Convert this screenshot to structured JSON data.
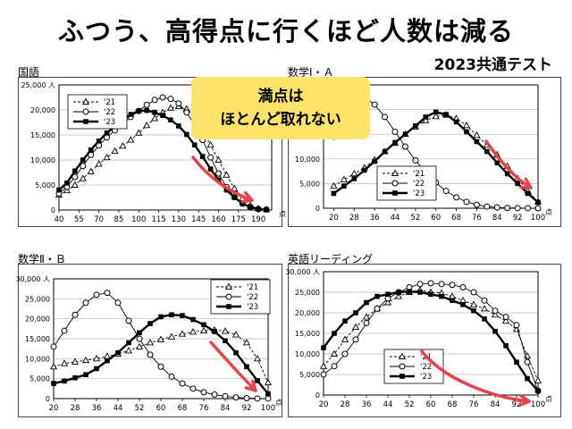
{
  "headline": "ふつう、高得点に行くほど人数は減る",
  "subline": "2023共通テスト",
  "callout": {
    "line1": "満点は",
    "line2": "ほとんど取れない"
  },
  "colors": {
    "accent_arrow": "#e8424a",
    "callout_bg": "#fde36a"
  },
  "chart_data": [
    {
      "type": "line",
      "title": "国語",
      "ylim": [
        0,
        25000
      ],
      "yticks": [
        "0",
        "5,000",
        "10,000",
        "15,000",
        "20,000",
        "25,000 人"
      ],
      "xlim": [
        40,
        200
      ],
      "x_tick_values": [
        40,
        55,
        70,
        85,
        100,
        115,
        130,
        145,
        160,
        175,
        190
      ],
      "x_unit": "点",
      "legend": [
        "'21",
        "'22",
        "'23"
      ],
      "series": [
        {
          "name": "'21",
          "marker": "triangle",
          "x": [
            40,
            46,
            52,
            58,
            64,
            70,
            76,
            82,
            88,
            94,
            100,
            106,
            112,
            118,
            124,
            130,
            136,
            142,
            148,
            154,
            160,
            166,
            172,
            178,
            184,
            190,
            196
          ],
          "values": [
            3000,
            3900,
            5000,
            6300,
            7700,
            9200,
            10500,
            11800,
            12800,
            14000,
            15400,
            16900,
            18300,
            19500,
            20400,
            20700,
            20200,
            18700,
            16000,
            13000,
            10000,
            7000,
            4300,
            2300,
            900,
            300,
            100
          ]
        },
        {
          "name": "'22",
          "marker": "circle",
          "x": [
            40,
            46,
            52,
            58,
            64,
            70,
            76,
            82,
            88,
            94,
            100,
            106,
            112,
            118,
            124,
            130,
            136,
            142,
            148,
            154,
            160,
            166,
            172,
            178,
            184,
            190,
            196
          ],
          "values": [
            3300,
            4600,
            6600,
            8800,
            11000,
            12900,
            14500,
            15900,
            17200,
            18600,
            19800,
            21000,
            22000,
            22500,
            22200,
            21300,
            19500,
            17000,
            14000,
            10500,
            7300,
            4600,
            2600,
            1300,
            500,
            200,
            100
          ]
        },
        {
          "name": "'23",
          "marker": "square",
          "x": [
            40,
            46,
            52,
            58,
            64,
            70,
            76,
            82,
            88,
            94,
            100,
            106,
            112,
            118,
            124,
            130,
            136,
            142,
            148,
            154,
            160,
            166,
            172,
            178,
            184,
            190,
            196
          ],
          "values": [
            4000,
            5400,
            7800,
            10000,
            12000,
            13800,
            15400,
            16700,
            18000,
            19100,
            19800,
            19900,
            19500,
            18900,
            18000,
            16800,
            15100,
            13000,
            10700,
            8200,
            6000,
            4000,
            2500,
            1300,
            600,
            200,
            50
          ]
        }
      ]
    },
    {
      "type": "line",
      "title": "数学Ⅰ・Ａ",
      "ylim": [
        0,
        25000
      ],
      "yticks": [
        "0",
        "5,000",
        "10,000",
        "15,000",
        "20,000",
        "25,000 人"
      ],
      "xlim": [
        16,
        100
      ],
      "x_tick_values": [
        20,
        28,
        36,
        44,
        52,
        60,
        68,
        76,
        84,
        92,
        100
      ],
      "x_unit": "点",
      "legend": [
        "'21",
        "'22",
        "'23"
      ],
      "series": [
        {
          "name": "'21",
          "marker": "triangle",
          "x": [
            20,
            24,
            28,
            32,
            36,
            40,
            44,
            48,
            52,
            56,
            60,
            64,
            68,
            72,
            76,
            80,
            84,
            88,
            92,
            96,
            100
          ],
          "values": [
            4500,
            5800,
            7000,
            8200,
            9800,
            11500,
            13200,
            15000,
            16500,
            17800,
            18600,
            18900,
            18200,
            16800,
            14800,
            12800,
            10800,
            8500,
            6000,
            3500,
            1300
          ]
        },
        {
          "name": "'22",
          "marker": "circle",
          "x": [
            20,
            24,
            28,
            32,
            36,
            40,
            44,
            48,
            52,
            56,
            60,
            64,
            68,
            72,
            76,
            80,
            84,
            88,
            92,
            96,
            100
          ],
          "values": [
            14500,
            19800,
            23000,
            22500,
            21000,
            18500,
            15500,
            12500,
            9700,
            7300,
            5200,
            3500,
            2200,
            1300,
            700,
            350,
            150,
            70,
            30,
            10,
            5
          ]
        },
        {
          "name": "'23",
          "marker": "square",
          "x": [
            20,
            24,
            28,
            32,
            36,
            40,
            44,
            48,
            52,
            56,
            60,
            64,
            68,
            72,
            76,
            80,
            84,
            88,
            92,
            96,
            100
          ],
          "values": [
            3000,
            4500,
            6000,
            7700,
            9500,
            11500,
            13300,
            15000,
            16700,
            18500,
            19500,
            19000,
            17500,
            15500,
            13500,
            11500,
            9200,
            7000,
            5000,
            3000,
            1200
          ]
        }
      ]
    },
    {
      "type": "line",
      "title": "数学Ⅱ・Ｂ",
      "ylim": [
        0,
        30000
      ],
      "yticks": [
        "0",
        "5,000",
        "10,000",
        "15,000",
        "20,000",
        "25,000",
        "30,000 人"
      ],
      "xlim": [
        20,
        100
      ],
      "x_tick_values": [
        20,
        28,
        36,
        44,
        52,
        60,
        68,
        76,
        84,
        92,
        100
      ],
      "x_unit": "点",
      "legend": [
        "'21",
        "'22",
        "'23"
      ],
      "series": [
        {
          "name": "'21",
          "marker": "triangle",
          "x": [
            20,
            24,
            28,
            32,
            36,
            40,
            44,
            48,
            52,
            56,
            60,
            64,
            68,
            72,
            76,
            80,
            84,
            88,
            92,
            96,
            100
          ],
          "values": [
            8000,
            8800,
            9200,
            9600,
            10000,
            10600,
            11200,
            12000,
            13000,
            14000,
            14800,
            15500,
            16200,
            16700,
            17000,
            17200,
            16900,
            16000,
            14000,
            10000,
            4000
          ]
        },
        {
          "name": "'22",
          "marker": "circle",
          "x": [
            20,
            24,
            28,
            32,
            36,
            40,
            44,
            48,
            52,
            56,
            60,
            64,
            68,
            72,
            76,
            80,
            84,
            88,
            92,
            96,
            100
          ],
          "values": [
            13000,
            17000,
            21000,
            24000,
            26000,
            26500,
            24000,
            19500,
            15000,
            11000,
            8000,
            5500,
            3800,
            2500,
            1600,
            1000,
            600,
            300,
            120,
            40,
            10
          ]
        },
        {
          "name": "'23",
          "marker": "square",
          "x": [
            20,
            24,
            28,
            32,
            36,
            40,
            44,
            48,
            52,
            56,
            60,
            64,
            68,
            72,
            76,
            80,
            84,
            88,
            92,
            96,
            100
          ],
          "values": [
            3800,
            4400,
            5200,
            6000,
            7500,
            9500,
            11500,
            14000,
            16500,
            18800,
            20500,
            21000,
            20800,
            19800,
            18500,
            16800,
            14500,
            11500,
            8000,
            4500,
            1200
          ]
        }
      ]
    },
    {
      "type": "line",
      "title": "英語リーディング",
      "ylim": [
        0,
        30000
      ],
      "yticks": [
        "0",
        "5,000",
        "10,000",
        "15,000",
        "20,000",
        "25,000",
        "30,000 人"
      ],
      "xlim": [
        20,
        100
      ],
      "x_tick_values": [
        20,
        28,
        36,
        44,
        52,
        60,
        68,
        76,
        84,
        92,
        100
      ],
      "x_unit": "点",
      "legend": [
        "'21",
        "'22",
        "'23"
      ],
      "series": [
        {
          "name": "'21",
          "marker": "triangle",
          "x": [
            20,
            24,
            28,
            32,
            36,
            40,
            44,
            48,
            52,
            56,
            60,
            64,
            68,
            72,
            76,
            80,
            84,
            88,
            92,
            96,
            100
          ],
          "values": [
            7000,
            10000,
            13500,
            16500,
            19000,
            21000,
            22500,
            24000,
            25000,
            25500,
            25000,
            24800,
            24000,
            23000,
            22000,
            21000,
            19500,
            18000,
            16000,
            9500,
            3500
          ]
        },
        {
          "name": "'22",
          "marker": "circle",
          "x": [
            20,
            24,
            28,
            32,
            36,
            40,
            44,
            48,
            52,
            56,
            60,
            64,
            68,
            72,
            76,
            80,
            84,
            88,
            92,
            96,
            100
          ],
          "values": [
            5000,
            7000,
            10000,
            13500,
            17500,
            21000,
            23500,
            25000,
            26200,
            27000,
            27200,
            27000,
            26800,
            26200,
            25000,
            23000,
            20500,
            19000,
            17000,
            8000,
            1000
          ]
        },
        {
          "name": "'23",
          "marker": "square",
          "x": [
            20,
            24,
            28,
            32,
            36,
            40,
            44,
            48,
            52,
            56,
            60,
            64,
            68,
            72,
            76,
            80,
            84,
            88,
            92,
            96,
            100
          ],
          "values": [
            11500,
            15000,
            18000,
            20000,
            22500,
            24000,
            24500,
            25000,
            25200,
            25000,
            24500,
            24000,
            23000,
            22000,
            20500,
            18500,
            15500,
            12000,
            8000,
            4000,
            1000
          ]
        }
      ]
    }
  ]
}
